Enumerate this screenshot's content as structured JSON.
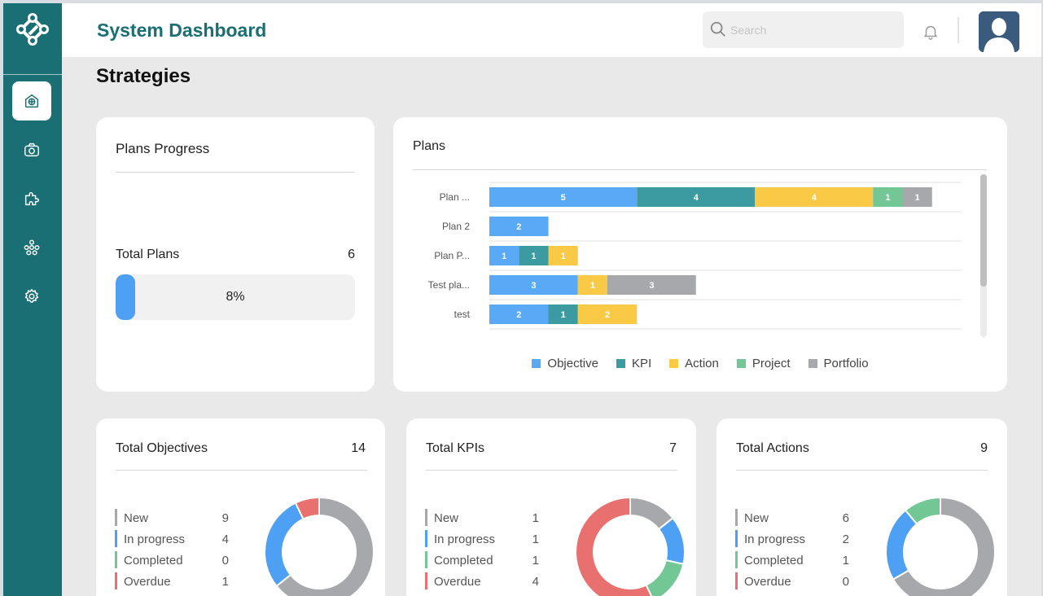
{
  "header": {
    "title": "System Dashboard",
    "search_placeholder": "Search"
  },
  "sidebar": {
    "items": [
      {
        "name": "home",
        "icon": "dashboard-icon",
        "active": true
      },
      {
        "name": "strategy",
        "icon": "camera-icon",
        "active": false
      },
      {
        "name": "plugins",
        "icon": "puzzle-icon",
        "active": false
      },
      {
        "name": "network",
        "icon": "org-chart-icon",
        "active": false
      },
      {
        "name": "settings",
        "icon": "gear-icon",
        "active": false
      }
    ]
  },
  "page": {
    "title": "Strategies"
  },
  "plans_progress": {
    "title": "Plans Progress",
    "total_label": "Total Plans",
    "total_value": "6",
    "progress_text": "8%",
    "progress_fraction": 0.08
  },
  "chart_data": {
    "type": "bar",
    "orientation": "horizontal",
    "stacked": true,
    "title": "Plans",
    "categories": [
      "Plan ...",
      "Plan 2",
      "Plan P...",
      "Test pla...",
      "test"
    ],
    "series": [
      {
        "name": "Objective",
        "color": "#5aa9f6",
        "values": [
          5,
          2,
          1,
          3,
          2
        ]
      },
      {
        "name": "KPI",
        "color": "#3c9ba0",
        "values": [
          4,
          0,
          1,
          0,
          1
        ]
      },
      {
        "name": "Action",
        "color": "#fac945",
        "values": [
          4,
          0,
          1,
          1,
          2
        ]
      },
      {
        "name": "Project",
        "color": "#72c795",
        "values": [
          1,
          0,
          0,
          0,
          0
        ]
      },
      {
        "name": "Portfolio",
        "color": "#a6a8ab",
        "values": [
          1,
          0,
          0,
          3,
          0
        ]
      }
    ],
    "xlim": [
      0,
      16
    ],
    "grid": true,
    "legend": "bottom"
  },
  "colors": {
    "new": "#a6a8ab",
    "in_progress": "#4ea0f5",
    "completed": "#72c795",
    "overdue": "#e8706f",
    "brand": "#1a6f75"
  },
  "stats": [
    {
      "title": "Total Objectives",
      "total": "14",
      "rows": [
        {
          "label": "New",
          "value": "9"
        },
        {
          "label": "In progress",
          "value": "4"
        },
        {
          "label": "Completed",
          "value": "0"
        },
        {
          "label": "Overdue",
          "value": "1"
        }
      ]
    },
    {
      "title": "Total KPIs",
      "total": "7",
      "rows": [
        {
          "label": "New",
          "value": "1"
        },
        {
          "label": "In progress",
          "value": "1"
        },
        {
          "label": "Completed",
          "value": "1"
        },
        {
          "label": "Overdue",
          "value": "4"
        }
      ]
    },
    {
      "title": "Total Actions",
      "total": "9",
      "rows": [
        {
          "label": "New",
          "value": "6"
        },
        {
          "label": "In progress",
          "value": "2"
        },
        {
          "label": "Completed",
          "value": "1"
        },
        {
          "label": "Overdue",
          "value": "0"
        }
      ]
    }
  ]
}
